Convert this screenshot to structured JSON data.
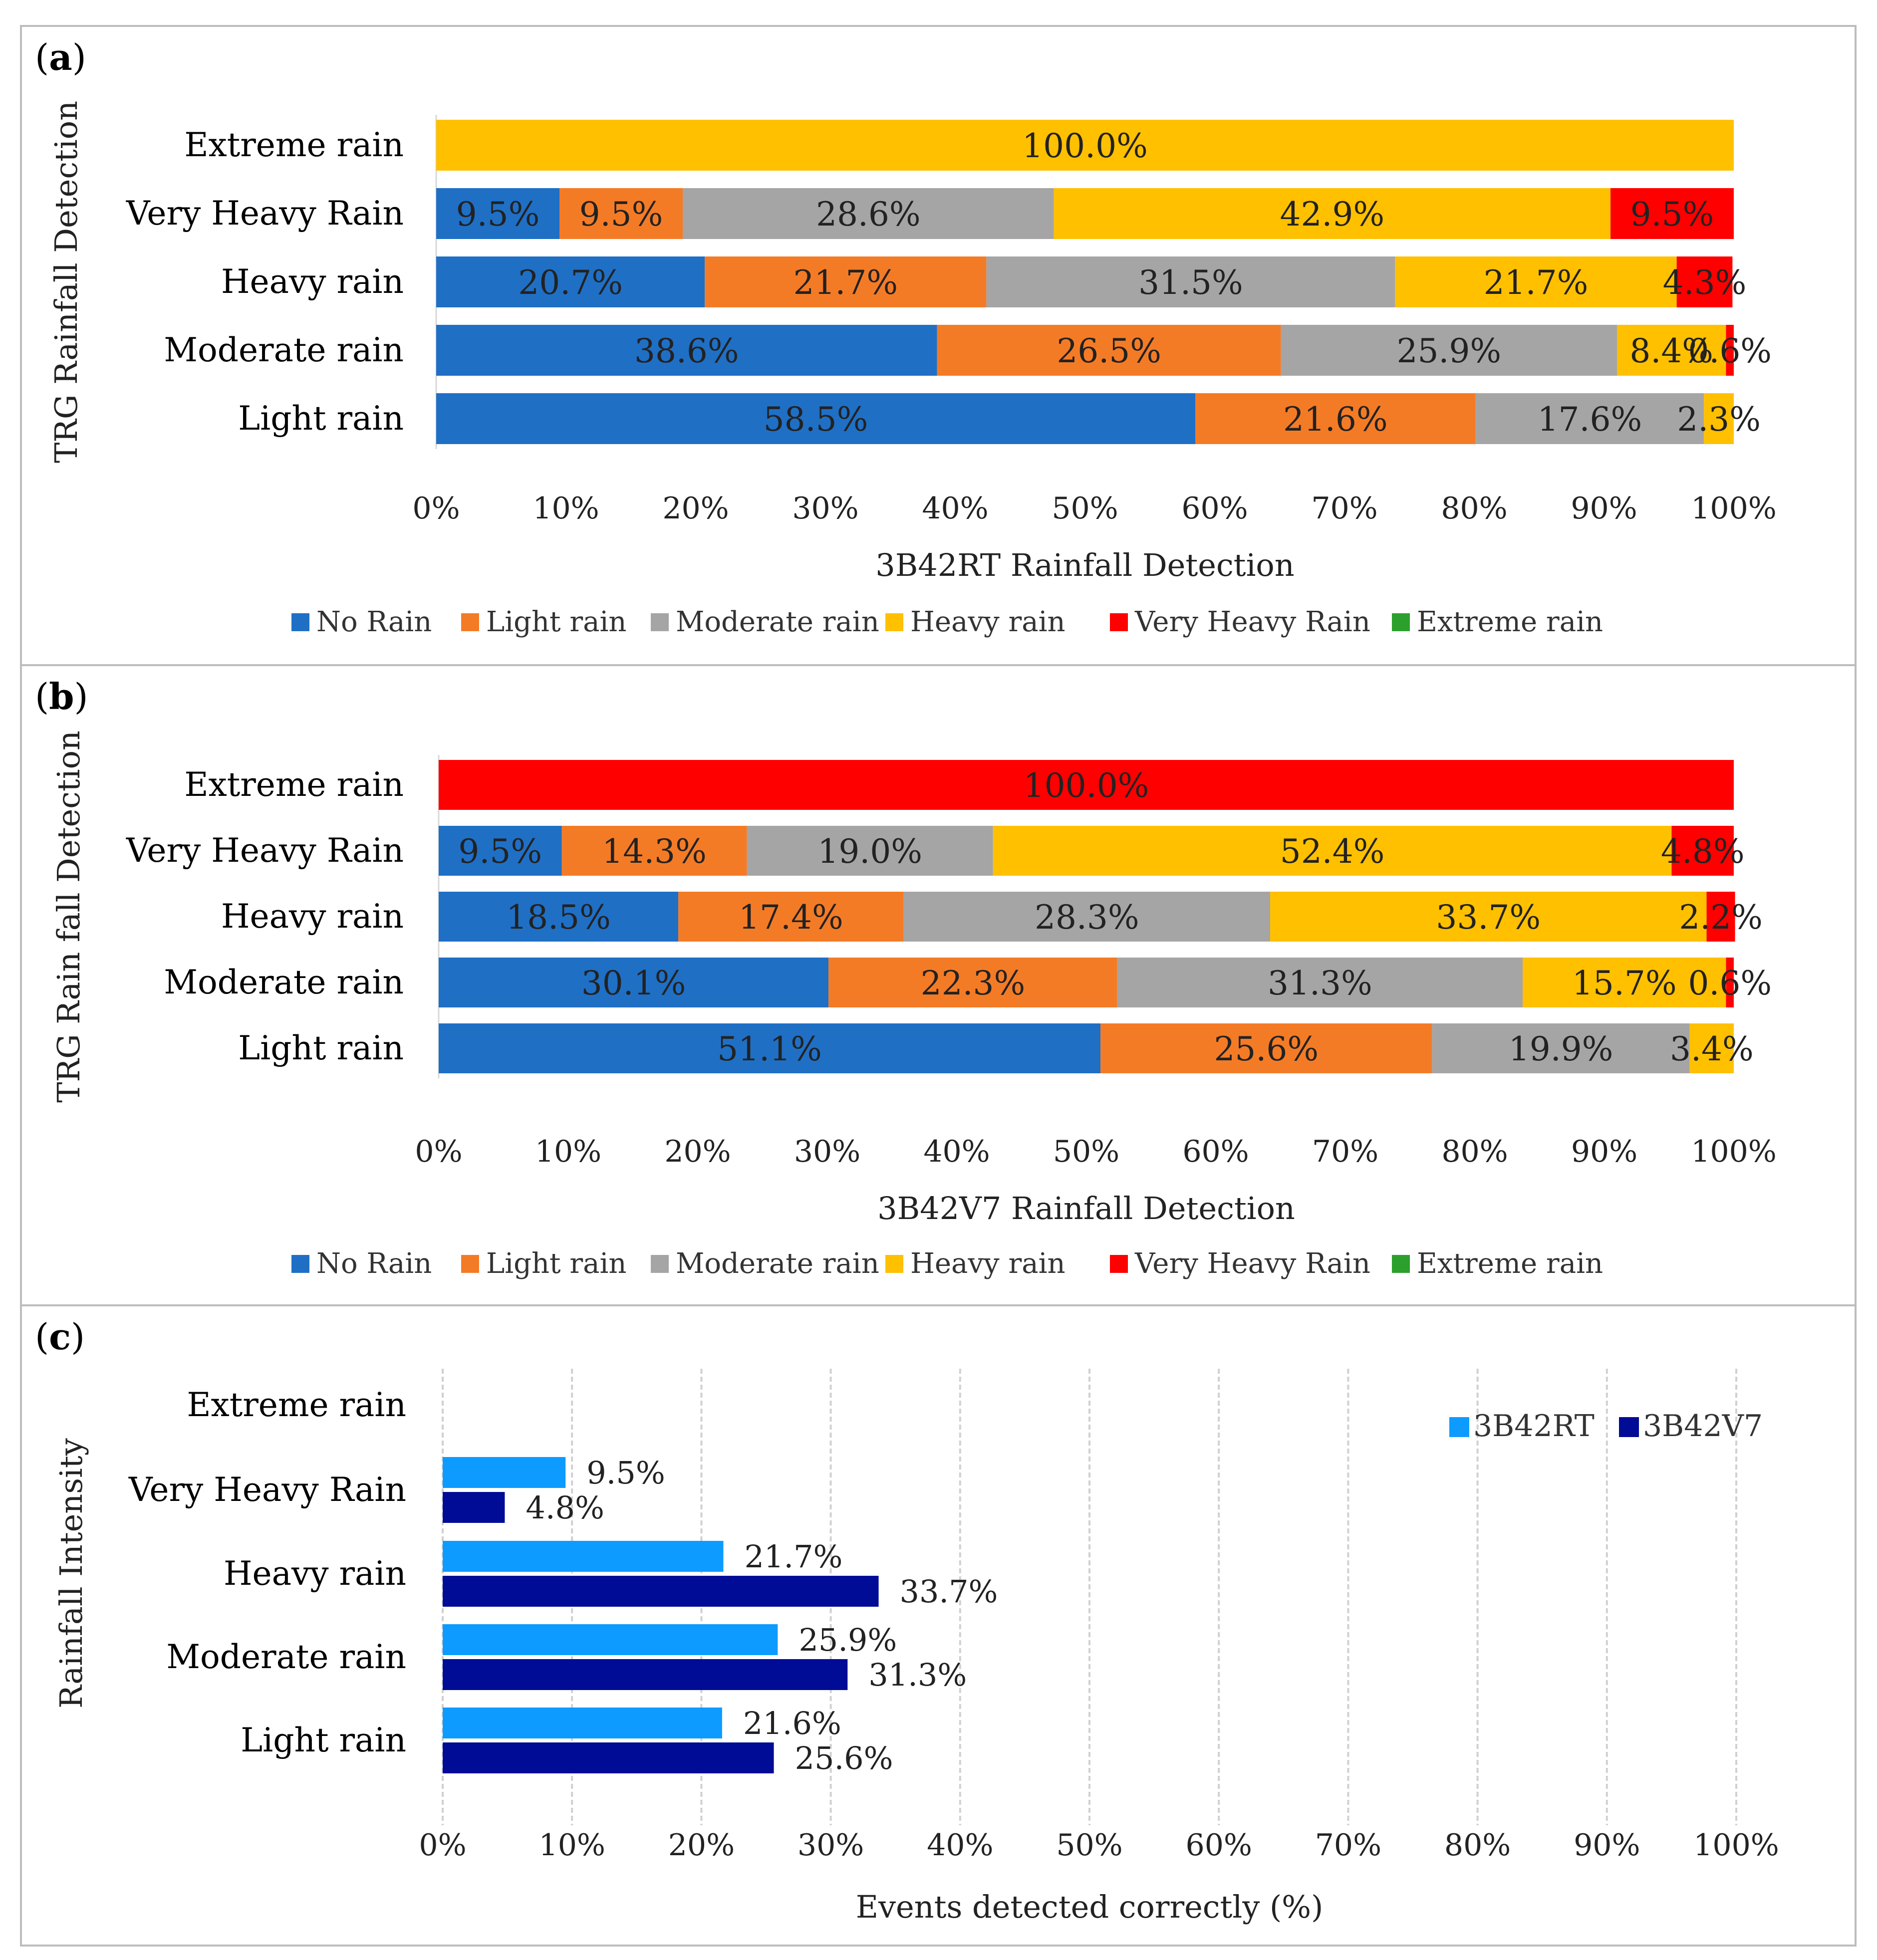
{
  "colors": {
    "no_rain": "#1f6fc5",
    "light_rain": "#f47b26",
    "moderate_rain": "#a5a5a5",
    "heavy_rain": "#ffc000",
    "very_heavy_rain": "#ff0000",
    "extreme_rain": "#2ca02c",
    "3B42RT": "#0d9bff",
    "3B42V7": "#000c96"
  },
  "panel_labels": {
    "a": "a",
    "b": "b",
    "c": "c"
  },
  "chart_data": [
    {
      "type": "bar",
      "orientation": "horizontal-stacked-100",
      "panel": "a",
      "ylabel": "TRG Rainfall Detection",
      "xlabel": "3B42RT Rainfall Detection",
      "categories": [
        "Extreme rain",
        "Very Heavy Rain",
        "Heavy rain",
        "Moderate rain",
        "Light rain"
      ],
      "xticks": [
        "0%",
        "10%",
        "20%",
        "30%",
        "40%",
        "50%",
        "60%",
        "70%",
        "80%",
        "90%",
        "100%"
      ],
      "xlim": [
        0,
        100
      ],
      "legend_position": "bottom",
      "series": [
        {
          "name": "No Rain",
          "color_key": "no_rain",
          "values": [
            0,
            9.5,
            20.7,
            38.6,
            58.5
          ],
          "labels": [
            "",
            "9.5%",
            "20.7%",
            "38.6%",
            "58.5%"
          ]
        },
        {
          "name": "Light rain",
          "color_key": "light_rain",
          "values": [
            0,
            9.5,
            21.7,
            26.5,
            21.6
          ],
          "labels": [
            "",
            "9.5%",
            "21.7%",
            "26.5%",
            "21.6%"
          ]
        },
        {
          "name": "Moderate rain",
          "color_key": "moderate_rain",
          "values": [
            0,
            28.6,
            31.5,
            25.9,
            17.6
          ],
          "labels": [
            "",
            "28.6%",
            "31.5%",
            "25.9%",
            "17.6%"
          ]
        },
        {
          "name": "Heavy rain",
          "color_key": "heavy_rain",
          "values": [
            100.0,
            42.9,
            21.7,
            8.4,
            2.3
          ],
          "labels": [
            "100.0%",
            "42.9%",
            "21.7%",
            "8.4%",
            "2.3%"
          ]
        },
        {
          "name": "Very Heavy Rain",
          "color_key": "very_heavy_rain",
          "values": [
            0,
            9.5,
            4.3,
            0.6,
            0
          ],
          "labels": [
            "",
            "9.5%",
            "4.3%",
            "0.6%",
            ""
          ]
        },
        {
          "name": "Extreme rain",
          "color_key": "extreme_rain",
          "values": [
            0,
            0,
            0,
            0,
            0
          ],
          "labels": [
            "",
            "",
            "",
            "",
            ""
          ]
        }
      ]
    },
    {
      "type": "bar",
      "orientation": "horizontal-stacked-100",
      "panel": "b",
      "ylabel": "TRG Rain fall Detection",
      "xlabel": "3B42V7 Rainfall Detection",
      "categories": [
        "Extreme rain",
        "Very Heavy Rain",
        "Heavy rain",
        "Moderate rain",
        "Light rain"
      ],
      "xticks": [
        "0%",
        "10%",
        "20%",
        "30%",
        "40%",
        "50%",
        "60%",
        "70%",
        "80%",
        "90%",
        "100%"
      ],
      "xlim": [
        0,
        100
      ],
      "legend_position": "bottom",
      "series": [
        {
          "name": "No Rain",
          "color_key": "no_rain",
          "values": [
            0,
            9.5,
            18.5,
            30.1,
            51.1
          ],
          "labels": [
            "",
            "9.5%",
            "18.5%",
            "30.1%",
            "51.1%"
          ]
        },
        {
          "name": "Light rain",
          "color_key": "light_rain",
          "values": [
            0,
            14.3,
            17.4,
            22.3,
            25.6
          ],
          "labels": [
            "",
            "14.3%",
            "17.4%",
            "22.3%",
            "25.6%"
          ]
        },
        {
          "name": "Moderate rain",
          "color_key": "moderate_rain",
          "values": [
            0,
            19.0,
            28.3,
            31.3,
            19.9
          ],
          "labels": [
            "",
            "19.0%",
            "28.3%",
            "31.3%",
            "19.9%"
          ]
        },
        {
          "name": "Heavy rain",
          "color_key": "heavy_rain",
          "values": [
            0,
            52.4,
            33.7,
            15.7,
            3.4
          ],
          "labels": [
            "",
            "52.4%",
            "33.7%",
            "15.7%",
            "3.4%"
          ]
        },
        {
          "name": "Very Heavy Rain",
          "color_key": "very_heavy_rain",
          "values": [
            100.0,
            4.8,
            2.2,
            0.6,
            0
          ],
          "labels": [
            "100.0%",
            "4.8%",
            "2.2%",
            "0.6%",
            ""
          ]
        },
        {
          "name": "Extreme rain",
          "color_key": "extreme_rain",
          "values": [
            0,
            0,
            0,
            0,
            0
          ],
          "labels": [
            "",
            "",
            "",
            "",
            ""
          ]
        }
      ]
    },
    {
      "type": "bar",
      "orientation": "horizontal-grouped",
      "panel": "c",
      "ylabel": "Rainfall Intensity",
      "xlabel": "Events detected correctly (%)",
      "categories": [
        "Extreme rain",
        "Very Heavy Rain",
        "Heavy rain",
        "Moderate rain",
        "Light rain"
      ],
      "xticks": [
        "0%",
        "10%",
        "20%",
        "30%",
        "40%",
        "50%",
        "60%",
        "70%",
        "80%",
        "90%",
        "100%"
      ],
      "xlim": [
        0,
        100
      ],
      "grid": true,
      "legend_position": "top-right",
      "series": [
        {
          "name": "3B42RT",
          "color_key": "3B42RT",
          "values": [
            null,
            9.5,
            21.7,
            25.9,
            21.6
          ],
          "labels": [
            "",
            "9.5%",
            "21.7%",
            "25.9%",
            "21.6%"
          ]
        },
        {
          "name": "3B42V7",
          "color_key": "3B42V7",
          "values": [
            null,
            4.8,
            33.7,
            31.3,
            25.6
          ],
          "labels": [
            "",
            "4.8%",
            "33.7%",
            "31.3%",
            "25.6%"
          ]
        }
      ]
    }
  ]
}
